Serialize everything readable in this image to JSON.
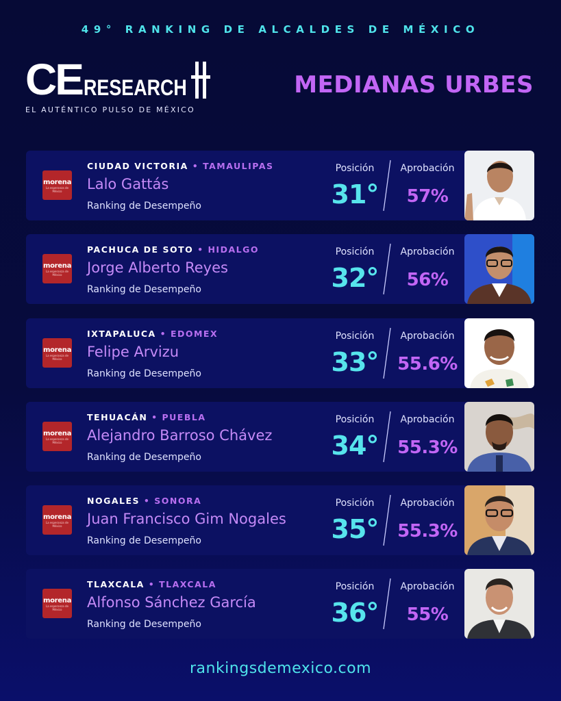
{
  "header": {
    "ranking_title": "49° RANKING DE ALCALDES DE MÉXICO",
    "logo_ce": "CE",
    "logo_research": "RESEARCH",
    "tagline": "EL AUTÉNTICO PULSO DE MÉXICO",
    "category": "MEDIANAS URBES"
  },
  "labels": {
    "position": "Posición",
    "approval": "Aprobación",
    "subtitle": "Ranking de Desempeño",
    "bullet": "•"
  },
  "party": {
    "name": "morena",
    "tagline": "La esperanza de México",
    "color": "#b3262a"
  },
  "mayors": [
    {
      "city": "CIUDAD VICTORIA",
      "state": "TAMAULIPAS",
      "name": "Lalo Gattás",
      "position": "31°",
      "approval": "57%"
    },
    {
      "city": "PACHUCA DE SOTO",
      "state": "HIDALGO",
      "name": "Jorge Alberto Reyes",
      "position": "32°",
      "approval": "56%"
    },
    {
      "city": "IXTAPALUCA",
      "state": "EDOMEX",
      "name": "Felipe Arvizu",
      "position": "33°",
      "approval": "55.6%"
    },
    {
      "city": "TEHUACÁN",
      "state": "PUEBLA",
      "name": "Alejandro Barroso Chávez",
      "position": "34°",
      "approval": "55.3%"
    },
    {
      "city": "NOGALES",
      "state": "SONORA",
      "name": "Juan Francisco Gim Nogales",
      "position": "35°",
      "approval": "55.3%"
    },
    {
      "city": "TLAXCALA",
      "state": "TLAXCALA",
      "name": "Alfonso Sánchez García",
      "position": "36°",
      "approval": "55%"
    }
  ],
  "footer": {
    "url": "rankingsdemexico.com"
  },
  "colors": {
    "background": "#060a36",
    "card": "#0c1162",
    "cyan": "#57e4ec",
    "purple": "#c266f5"
  }
}
